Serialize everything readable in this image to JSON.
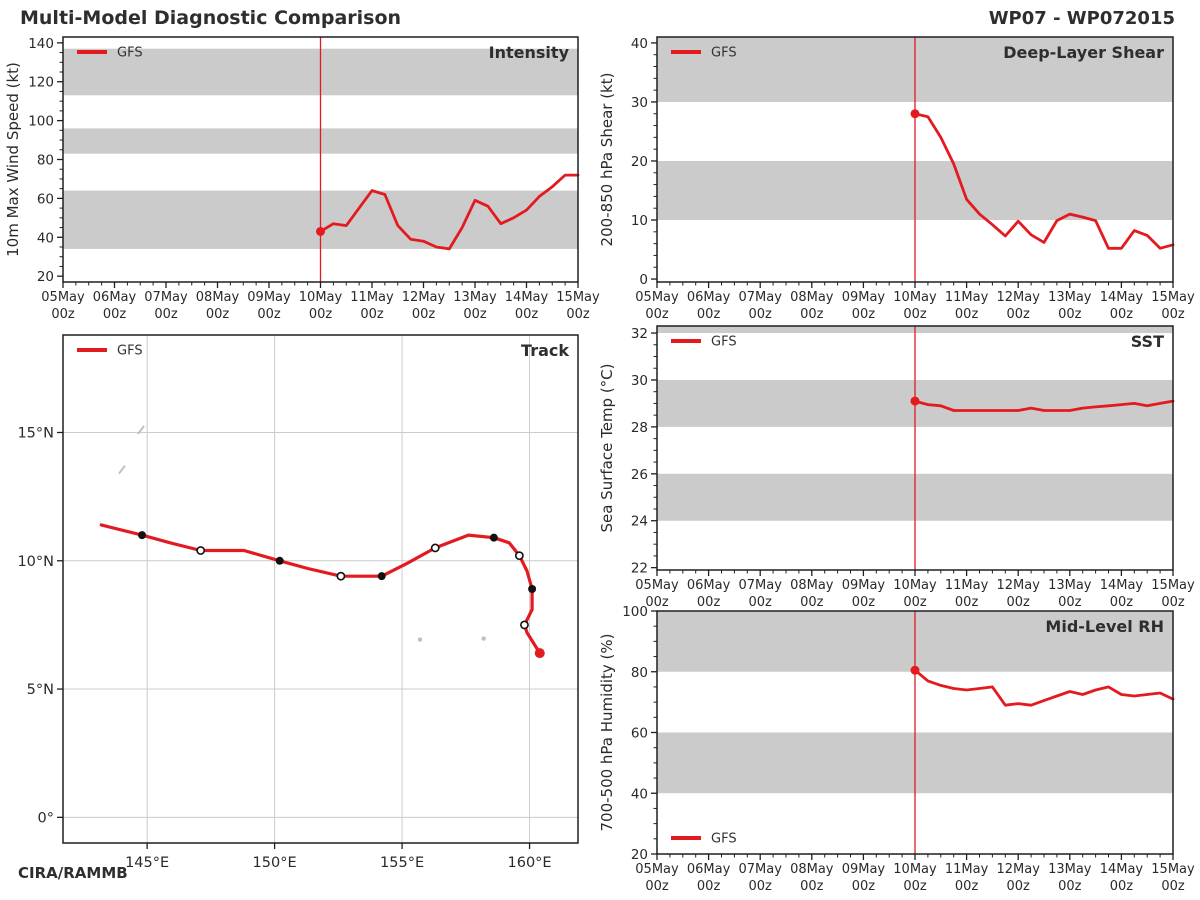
{
  "header": {
    "title": "Multi-Model Diagnostic Comparison",
    "storm_id": "WP07 - WP072015"
  },
  "footer": {
    "credit": "CIRA/RAMMB"
  },
  "legend_label": "GFS",
  "colors": {
    "gfs_red": "#e31a1f",
    "band_gray": "#cbcbcb",
    "grid_gray": "#cccccc",
    "frame": "#1f1f1f",
    "text": "#2a2a2a",
    "legend_text": "#333333",
    "island": "#bfbfbf"
  },
  "x_axis": {
    "day_labels": [
      "05May",
      "06May",
      "07May",
      "08May",
      "09May",
      "10May",
      "11May",
      "12May",
      "13May",
      "14May",
      "15May"
    ],
    "hour_label": "00z",
    "slots_total": 40,
    "forecast_start_slot": 20,
    "hours_per_slot": 6
  },
  "chart_data": [
    {
      "id": "intensity",
      "type": "line",
      "panel_title": "Intensity",
      "ylabel": "10m Max Wind Speed (kt)",
      "ylim": [
        17,
        143
      ],
      "yticks": [
        20,
        40,
        60,
        80,
        100,
        120,
        140
      ],
      "y_minor_step": 5,
      "shaded_bands": [
        [
          34,
          64
        ],
        [
          83,
          96
        ],
        [
          113,
          137
        ]
      ],
      "legend_pos": "top-left",
      "x_start": "10May 00z",
      "x_end": "15May 00z",
      "series": [
        {
          "name": "GFS",
          "values": [
            43,
            47,
            46,
            55,
            64,
            62,
            46,
            39,
            38,
            35,
            34,
            45,
            59,
            56,
            47,
            50,
            54,
            61,
            66,
            72,
            72
          ]
        }
      ]
    },
    {
      "id": "shear",
      "type": "line",
      "panel_title": "Deep-Layer Shear",
      "ylabel": "200-850 hPa Shear (kt)",
      "ylim": [
        -0.5,
        41
      ],
      "yticks": [
        0,
        10,
        20,
        30,
        40
      ],
      "y_minor_step": 2,
      "shaded_bands": [
        [
          10,
          20
        ],
        [
          30,
          41
        ]
      ],
      "legend_pos": "top-left",
      "x_start": "10May 00z",
      "x_end": "15May 00z",
      "series": [
        {
          "name": "GFS",
          "values": [
            28,
            27.5,
            24,
            19.5,
            13.5,
            11,
            9.2,
            7.3,
            9.8,
            7.5,
            6.2,
            9.9,
            11,
            10.5,
            9.9,
            5.2,
            5.2,
            8.2,
            7.4,
            5.2,
            5.8
          ]
        }
      ]
    },
    {
      "id": "sst",
      "type": "line",
      "panel_title": "SST",
      "ylabel": "Sea Surface Temp (°C)",
      "ylim": [
        21.9,
        32.3
      ],
      "yticks": [
        22,
        24,
        26,
        28,
        30,
        32
      ],
      "y_minor_step": 0.5,
      "shaded_bands": [
        [
          24,
          26
        ],
        [
          28,
          30
        ],
        [
          32,
          32.3
        ]
      ],
      "legend_pos": "top-left",
      "x_start": "10May 00z",
      "x_end": "15May 00z",
      "series": [
        {
          "name": "GFS",
          "values": [
            29.1,
            28.95,
            28.9,
            28.7,
            28.7,
            28.7,
            28.7,
            28.7,
            28.7,
            28.8,
            28.7,
            28.7,
            28.7,
            28.8,
            28.85,
            28.9,
            28.95,
            29.0,
            28.9,
            29.0,
            29.1
          ]
        }
      ]
    },
    {
      "id": "rh",
      "type": "line",
      "panel_title": "Mid-Level RH",
      "ylabel": "700-500 hPa Humidity (%)",
      "ylim": [
        20,
        100
      ],
      "yticks": [
        20,
        40,
        60,
        80,
        100
      ],
      "y_minor_step": 5,
      "shaded_bands": [
        [
          40,
          60
        ],
        [
          80,
          100
        ]
      ],
      "legend_pos": "bottom-left",
      "x_start": "10May 00z",
      "x_end": "15May 00z",
      "series": [
        {
          "name": "GFS",
          "values": [
            80.5,
            77,
            75.5,
            74.5,
            74,
            74.5,
            75,
            69,
            69.5,
            69,
            70.5,
            72,
            73.5,
            72.5,
            74,
            75,
            72.5,
            72,
            72.5,
            73,
            71
          ]
        }
      ]
    },
    {
      "id": "track",
      "type": "track",
      "panel_title": "Track",
      "legend_pos": "top-left",
      "lon_range": [
        141.7,
        161.9
      ],
      "lat_range": [
        -1.0,
        18.8
      ],
      "lon_ticks": [
        {
          "v": 145,
          "label": "145°E"
        },
        {
          "v": 150,
          "label": "150°E"
        },
        {
          "v": 155,
          "label": "155°E"
        },
        {
          "v": 160,
          "label": "160°E"
        }
      ],
      "lat_ticks": [
        {
          "v": 0,
          "label": "0°"
        },
        {
          "v": 5,
          "label": "5°N"
        },
        {
          "v": 10,
          "label": "10°N"
        },
        {
          "v": 15,
          "label": "15°N"
        }
      ],
      "series": [
        {
          "name": "GFS",
          "points": [
            {
              "lon": 160.4,
              "lat": 6.4,
              "m": "start"
            },
            {
              "lon": 159.9,
              "lat": 7.2,
              "m": "none"
            },
            {
              "lon": 159.8,
              "lat": 7.5,
              "m": "open"
            },
            {
              "lon": 160.1,
              "lat": 8.1,
              "m": "none"
            },
            {
              "lon": 160.1,
              "lat": 8.9,
              "m": "filled"
            },
            {
              "lon": 159.9,
              "lat": 9.6,
              "m": "none"
            },
            {
              "lon": 159.6,
              "lat": 10.2,
              "m": "open"
            },
            {
              "lon": 159.2,
              "lat": 10.7,
              "m": "none"
            },
            {
              "lon": 158.6,
              "lat": 10.9,
              "m": "filled"
            },
            {
              "lon": 157.6,
              "lat": 11.0,
              "m": "none"
            },
            {
              "lon": 156.3,
              "lat": 10.5,
              "m": "open"
            },
            {
              "lon": 155.2,
              "lat": 9.9,
              "m": "none"
            },
            {
              "lon": 154.2,
              "lat": 9.4,
              "m": "filled"
            },
            {
              "lon": 153.4,
              "lat": 9.4,
              "m": "none"
            },
            {
              "lon": 152.6,
              "lat": 9.4,
              "m": "open"
            },
            {
              "lon": 151.3,
              "lat": 9.7,
              "m": "none"
            },
            {
              "lon": 150.2,
              "lat": 10.0,
              "m": "filled"
            },
            {
              "lon": 148.8,
              "lat": 10.4,
              "m": "none"
            },
            {
              "lon": 147.1,
              "lat": 10.4,
              "m": "open"
            },
            {
              "lon": 145.9,
              "lat": 10.7,
              "m": "none"
            },
            {
              "lon": 144.8,
              "lat": 11.0,
              "m": "filled"
            },
            {
              "lon": 143.2,
              "lat": 11.4,
              "m": "none"
            }
          ]
        }
      ],
      "islands": [
        {
          "lon": 144.05,
          "lat": 13.55,
          "kind": "arc"
        },
        {
          "lon": 144.8,
          "lat": 15.1,
          "kind": "arc"
        },
        {
          "lon": 155.7,
          "lat": 6.93,
          "kind": "dot"
        },
        {
          "lon": 158.2,
          "lat": 6.97,
          "kind": "dot"
        }
      ]
    }
  ]
}
